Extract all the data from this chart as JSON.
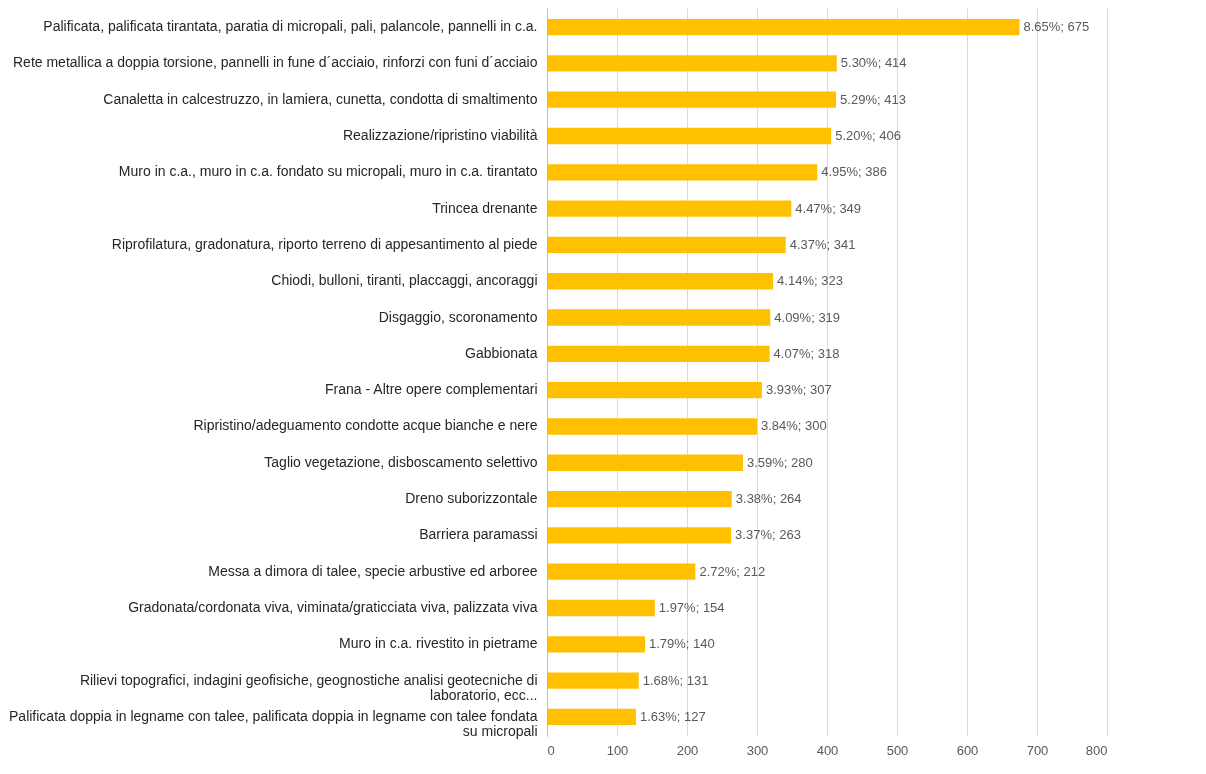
{
  "chart_data": {
    "type": "bar",
    "orientation": "horizontal",
    "categories": [
      "Palificata, palificata tirantata, paratia di micropali, pali, palancole, pannelli in c.a.",
      "Rete metallica a doppia torsione, pannelli in fune d´acciaio, rinforzi con funi d´acciaio",
      "Canaletta in calcestruzzo, in lamiera, cunetta, condotta di smaltimento",
      "Realizzazione/ripristino viabilità",
      "Muro in c.a., muro in c.a. fondato su micropali, muro in c.a. tirantato",
      "Trincea drenante",
      "Riprofilatura, gradonatura, riporto terreno di appesantimento al piede",
      "Chiodi, bulloni, tiranti, placcaggi, ancoraggi",
      "Disgaggio, scoronamento",
      "Gabbionata",
      "Frana - Altre opere complementari",
      "Ripristino/adeguamento condotte acque bianche e nere",
      "Taglio vegetazione, disboscamento selettivo",
      "Dreno suborizzontale",
      "Barriera paramassi",
      "Messa a dimora di talee, specie arbustive ed arboree",
      "Gradonata/cordonata viva, viminata/graticciata viva, palizzata viva",
      "Muro in c.a. rivestito in pietrame",
      "Rilievi topografici, indagini geofisiche, geognostiche analisi geotecniche di laboratorio, ecc...",
      "Palificata doppia in legname con talee, palificata doppia in legname con talee fondata su micropali"
    ],
    "values": [
      675,
      414,
      413,
      406,
      386,
      349,
      341,
      323,
      319,
      318,
      307,
      300,
      280,
      264,
      263,
      212,
      154,
      140,
      131,
      127
    ],
    "value_labels": [
      "8.65%; 675",
      "5.30%; 414",
      "5.29%; 413",
      "5.20%; 406",
      "4.95%; 386",
      "4.47%; 349",
      "4.37%; 341",
      "4.14%; 323",
      "4.09%; 319",
      "4.07%; 318",
      "3.93%; 307",
      "3.84%; 300",
      "3.59%; 280",
      "3.38%; 264",
      "3.37%; 263",
      "2.72%; 212",
      "1.97%; 154",
      "1.79%; 140",
      "1.68%; 131",
      "1.63%; 127"
    ],
    "color": "#ffc000",
    "xlim": [
      0,
      800
    ],
    "xticks": [
      0,
      100,
      200,
      300,
      400,
      500,
      600,
      700,
      800
    ],
    "grid": "x"
  }
}
